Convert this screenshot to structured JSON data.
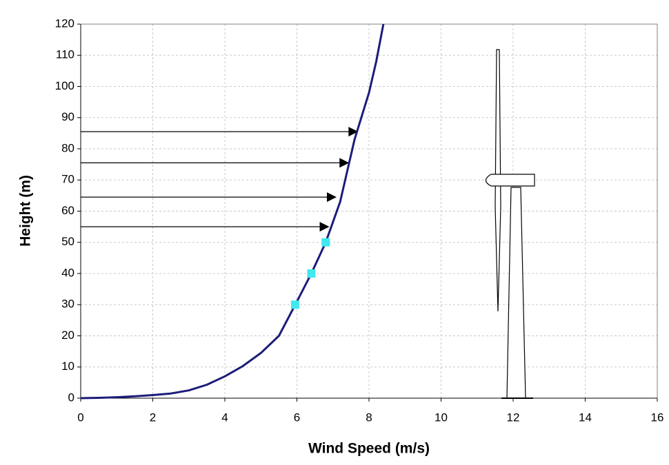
{
  "chart_data": {
    "type": "line",
    "x_label": "Wind Speed (m/s)",
    "y_label": "Height (m)",
    "xlim": [
      0,
      16
    ],
    "xticks": [
      0,
      2,
      4,
      6,
      8,
      10,
      12,
      14,
      16
    ],
    "ylim": [
      0,
      120
    ],
    "yticks": [
      0,
      10,
      20,
      30,
      40,
      50,
      60,
      70,
      80,
      90,
      100,
      110,
      120
    ],
    "grid": true,
    "series": [
      {
        "color": "#1c1c7a",
        "marker": "none",
        "x": [
          0,
          0.5,
          1,
          1.5,
          2,
          2.5,
          3,
          3.5,
          4,
          4.5,
          5,
          5.5,
          6,
          6.4,
          6.8,
          7.2,
          7.6,
          8,
          8.2,
          8.4
        ],
        "values": [
          0,
          0.1,
          0.3,
          0.6,
          1,
          1.5,
          2.5,
          4.3,
          7,
          10.3,
          14.5,
          20,
          31,
          40,
          50,
          63,
          83,
          98,
          108,
          120
        ]
      },
      {
        "color": "#40e8f0",
        "marker": "square",
        "x": [
          5.95,
          6.4,
          6.8
        ],
        "values": [
          30,
          40,
          50
        ]
      }
    ],
    "arrows": {
      "color": "#000000",
      "values": [
        85.5,
        75.5,
        64.5,
        55
      ],
      "x_end": [
        7.7,
        7.45,
        7.1,
        6.9
      ]
    }
  }
}
